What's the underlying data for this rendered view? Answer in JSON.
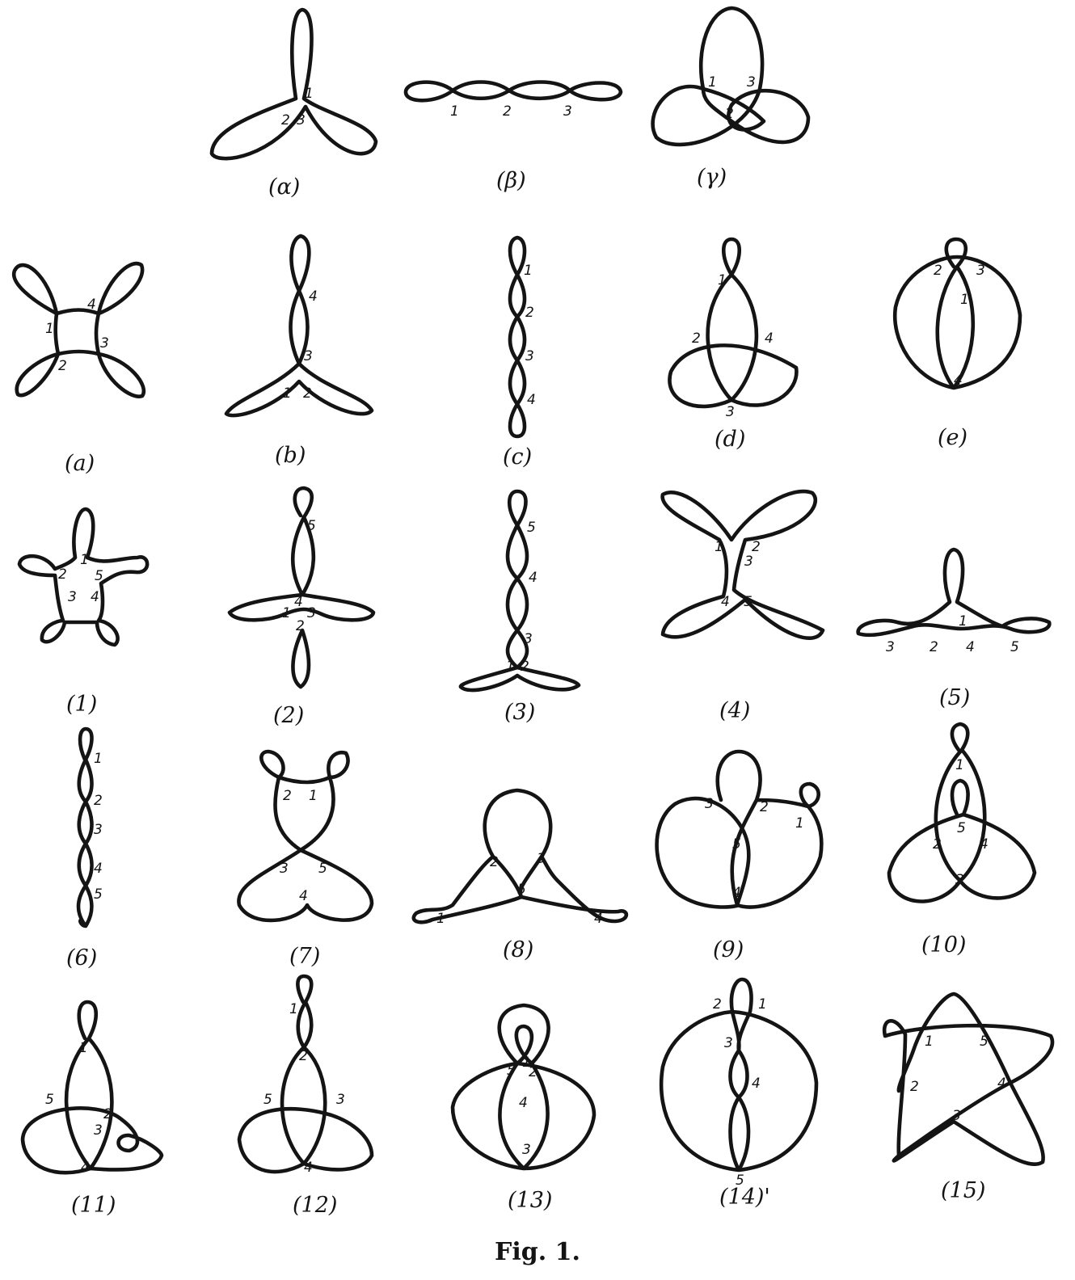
{
  "caption": "Fig. 1.",
  "colors": {
    "ink": "#141414",
    "paper": "#ffffff"
  },
  "figures": [
    {
      "id": "alpha_greek",
      "label": "(α)",
      "numbers": [
        "1",
        "2",
        "3"
      ]
    },
    {
      "id": "beta",
      "label": "(β)",
      "numbers": [
        "1",
        "2",
        "3"
      ]
    },
    {
      "id": "gamma",
      "label": "(γ)",
      "numbers": [
        "1",
        "2",
        "3"
      ]
    },
    {
      "id": "a",
      "label": "(a)",
      "numbers": [
        "1",
        "2",
        "3",
        "4"
      ]
    },
    {
      "id": "b",
      "label": "(b)",
      "numbers": [
        "1",
        "2",
        "3",
        "4"
      ]
    },
    {
      "id": "c",
      "label": "(c)",
      "numbers": [
        "1",
        "2",
        "3",
        "4"
      ]
    },
    {
      "id": "d",
      "label": "(d)",
      "numbers": [
        "1",
        "2",
        "3",
        "4"
      ]
    },
    {
      "id": "e",
      "label": "(e)",
      "numbers": [
        "1",
        "2",
        "3",
        "4"
      ]
    },
    {
      "id": "f1",
      "label": "(1)",
      "numbers": [
        "1",
        "2",
        "3",
        "4",
        "5"
      ]
    },
    {
      "id": "f2",
      "label": "(2)",
      "numbers": [
        "1",
        "2",
        "3",
        "4",
        "5"
      ]
    },
    {
      "id": "f3",
      "label": "(3)",
      "numbers": [
        "1",
        "2",
        "3",
        "4",
        "5"
      ]
    },
    {
      "id": "f4",
      "label": "(4)",
      "numbers": [
        "1",
        "2",
        "3",
        "4",
        "5"
      ]
    },
    {
      "id": "f5",
      "label": "(5)",
      "numbers": [
        "1",
        "2",
        "3",
        "4",
        "5"
      ]
    },
    {
      "id": "f6",
      "label": "(6)",
      "numbers": [
        "1",
        "2",
        "3",
        "4",
        "5"
      ]
    },
    {
      "id": "f7",
      "label": "(7)",
      "numbers": [
        "1",
        "2",
        "3",
        "4",
        "5"
      ]
    },
    {
      "id": "f8",
      "label": "(8)",
      "numbers": [
        "1",
        "2",
        "3",
        "4",
        "5"
      ]
    },
    {
      "id": "f9",
      "label": "(9)",
      "numbers": [
        "1",
        "2",
        "3",
        "4",
        "5"
      ]
    },
    {
      "id": "f10",
      "label": "(10)",
      "numbers": [
        "1",
        "2",
        "3",
        "4",
        "5"
      ]
    },
    {
      "id": "f11",
      "label": "(11)",
      "numbers": [
        "1",
        "2",
        "3",
        "4",
        "5"
      ]
    },
    {
      "id": "f12",
      "label": "(12)",
      "numbers": [
        "1",
        "2",
        "3",
        "4",
        "5"
      ]
    },
    {
      "id": "f13",
      "label": "(13)",
      "numbers": [
        "1",
        "2",
        "3",
        "4",
        "5"
      ]
    },
    {
      "id": "f14",
      "label": "(14)'",
      "numbers": [
        "1",
        "2",
        "3",
        "4",
        "5"
      ]
    },
    {
      "id": "f15",
      "label": "(15)",
      "numbers": [
        "1",
        "2",
        "3",
        "4",
        "5"
      ]
    }
  ]
}
